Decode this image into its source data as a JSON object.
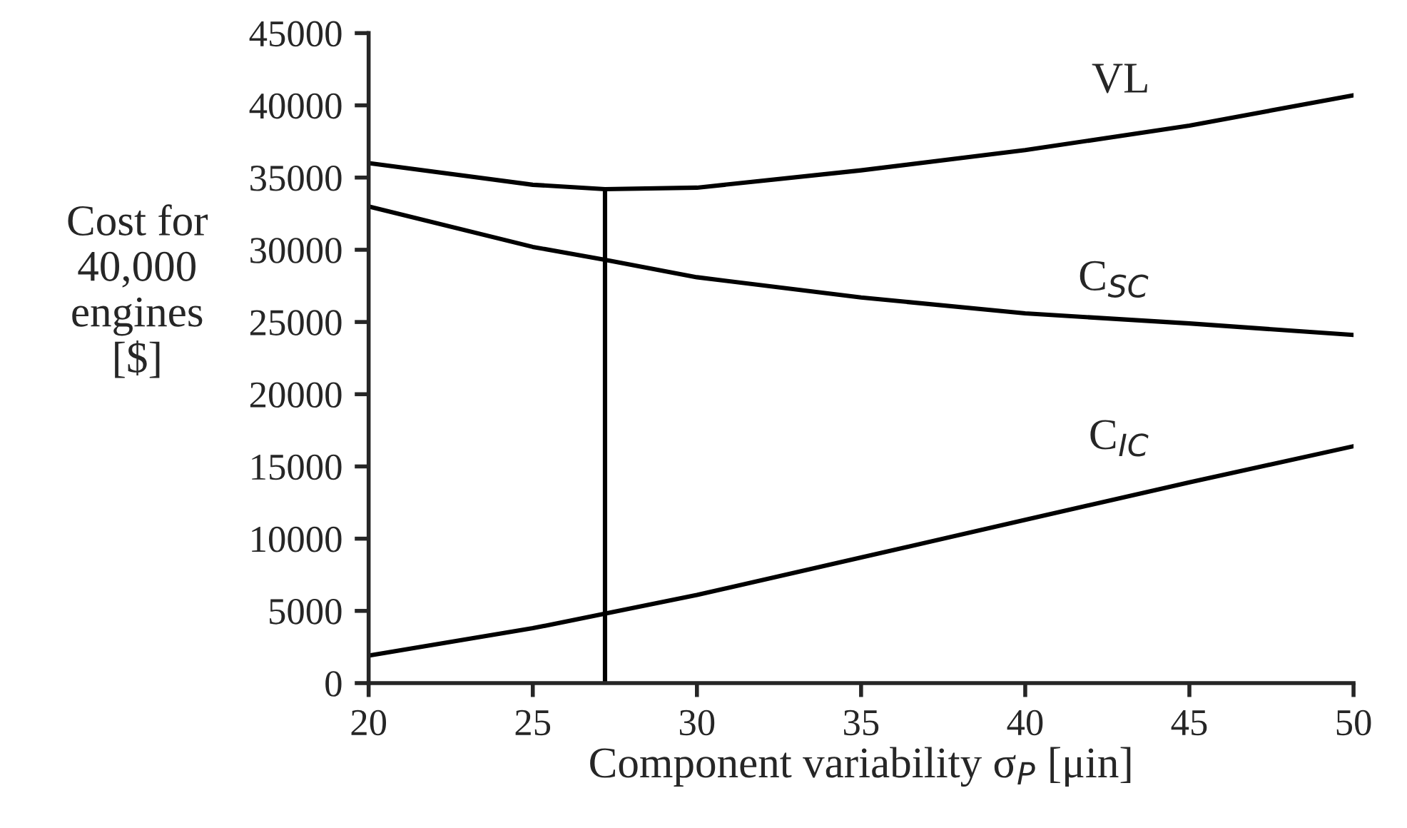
{
  "chart_data": {
    "type": "line",
    "xlabel": "Component variability σ$_{P}$ [μin]",
    "ylabel": "Cost for\n40,000\nengines\n[$]",
    "x": [
      20,
      25,
      27.2,
      30,
      35,
      40,
      45,
      50
    ],
    "series": [
      {
        "name": "VL",
        "color": "#000000",
        "values": [
          36000,
          34500,
          34200,
          34300,
          35500,
          36900,
          38600,
          40700
        ]
      },
      {
        "name": "C$_{SC}$",
        "color": "#000000",
        "values": [
          33000,
          30200,
          29300,
          28100,
          26700,
          25600,
          24900,
          24100
        ]
      },
      {
        "name": "C$_{IC}$",
        "color": "#000000",
        "x": [
          20,
          25,
          30,
          35,
          40,
          45,
          50
        ],
        "values": [
          1900,
          3800,
          6100,
          8700,
          11300,
          13900,
          16400
        ]
      },
      {
        "color": "#000000",
        "x": [
          27.2,
          27.2
        ],
        "values": [
          0,
          34200
        ]
      }
    ],
    "xlim": [
      20,
      50
    ],
    "xticks": [
      20,
      25,
      30,
      35,
      40,
      45,
      50
    ],
    "ylim": [
      0,
      45000
    ],
    "yticks": [
      0,
      5000,
      10000,
      15000,
      20000,
      25000,
      30000,
      35000,
      40000,
      45000
    ],
    "grid": false,
    "legend": false,
    "marker": "none",
    "line_style": "solid"
  }
}
